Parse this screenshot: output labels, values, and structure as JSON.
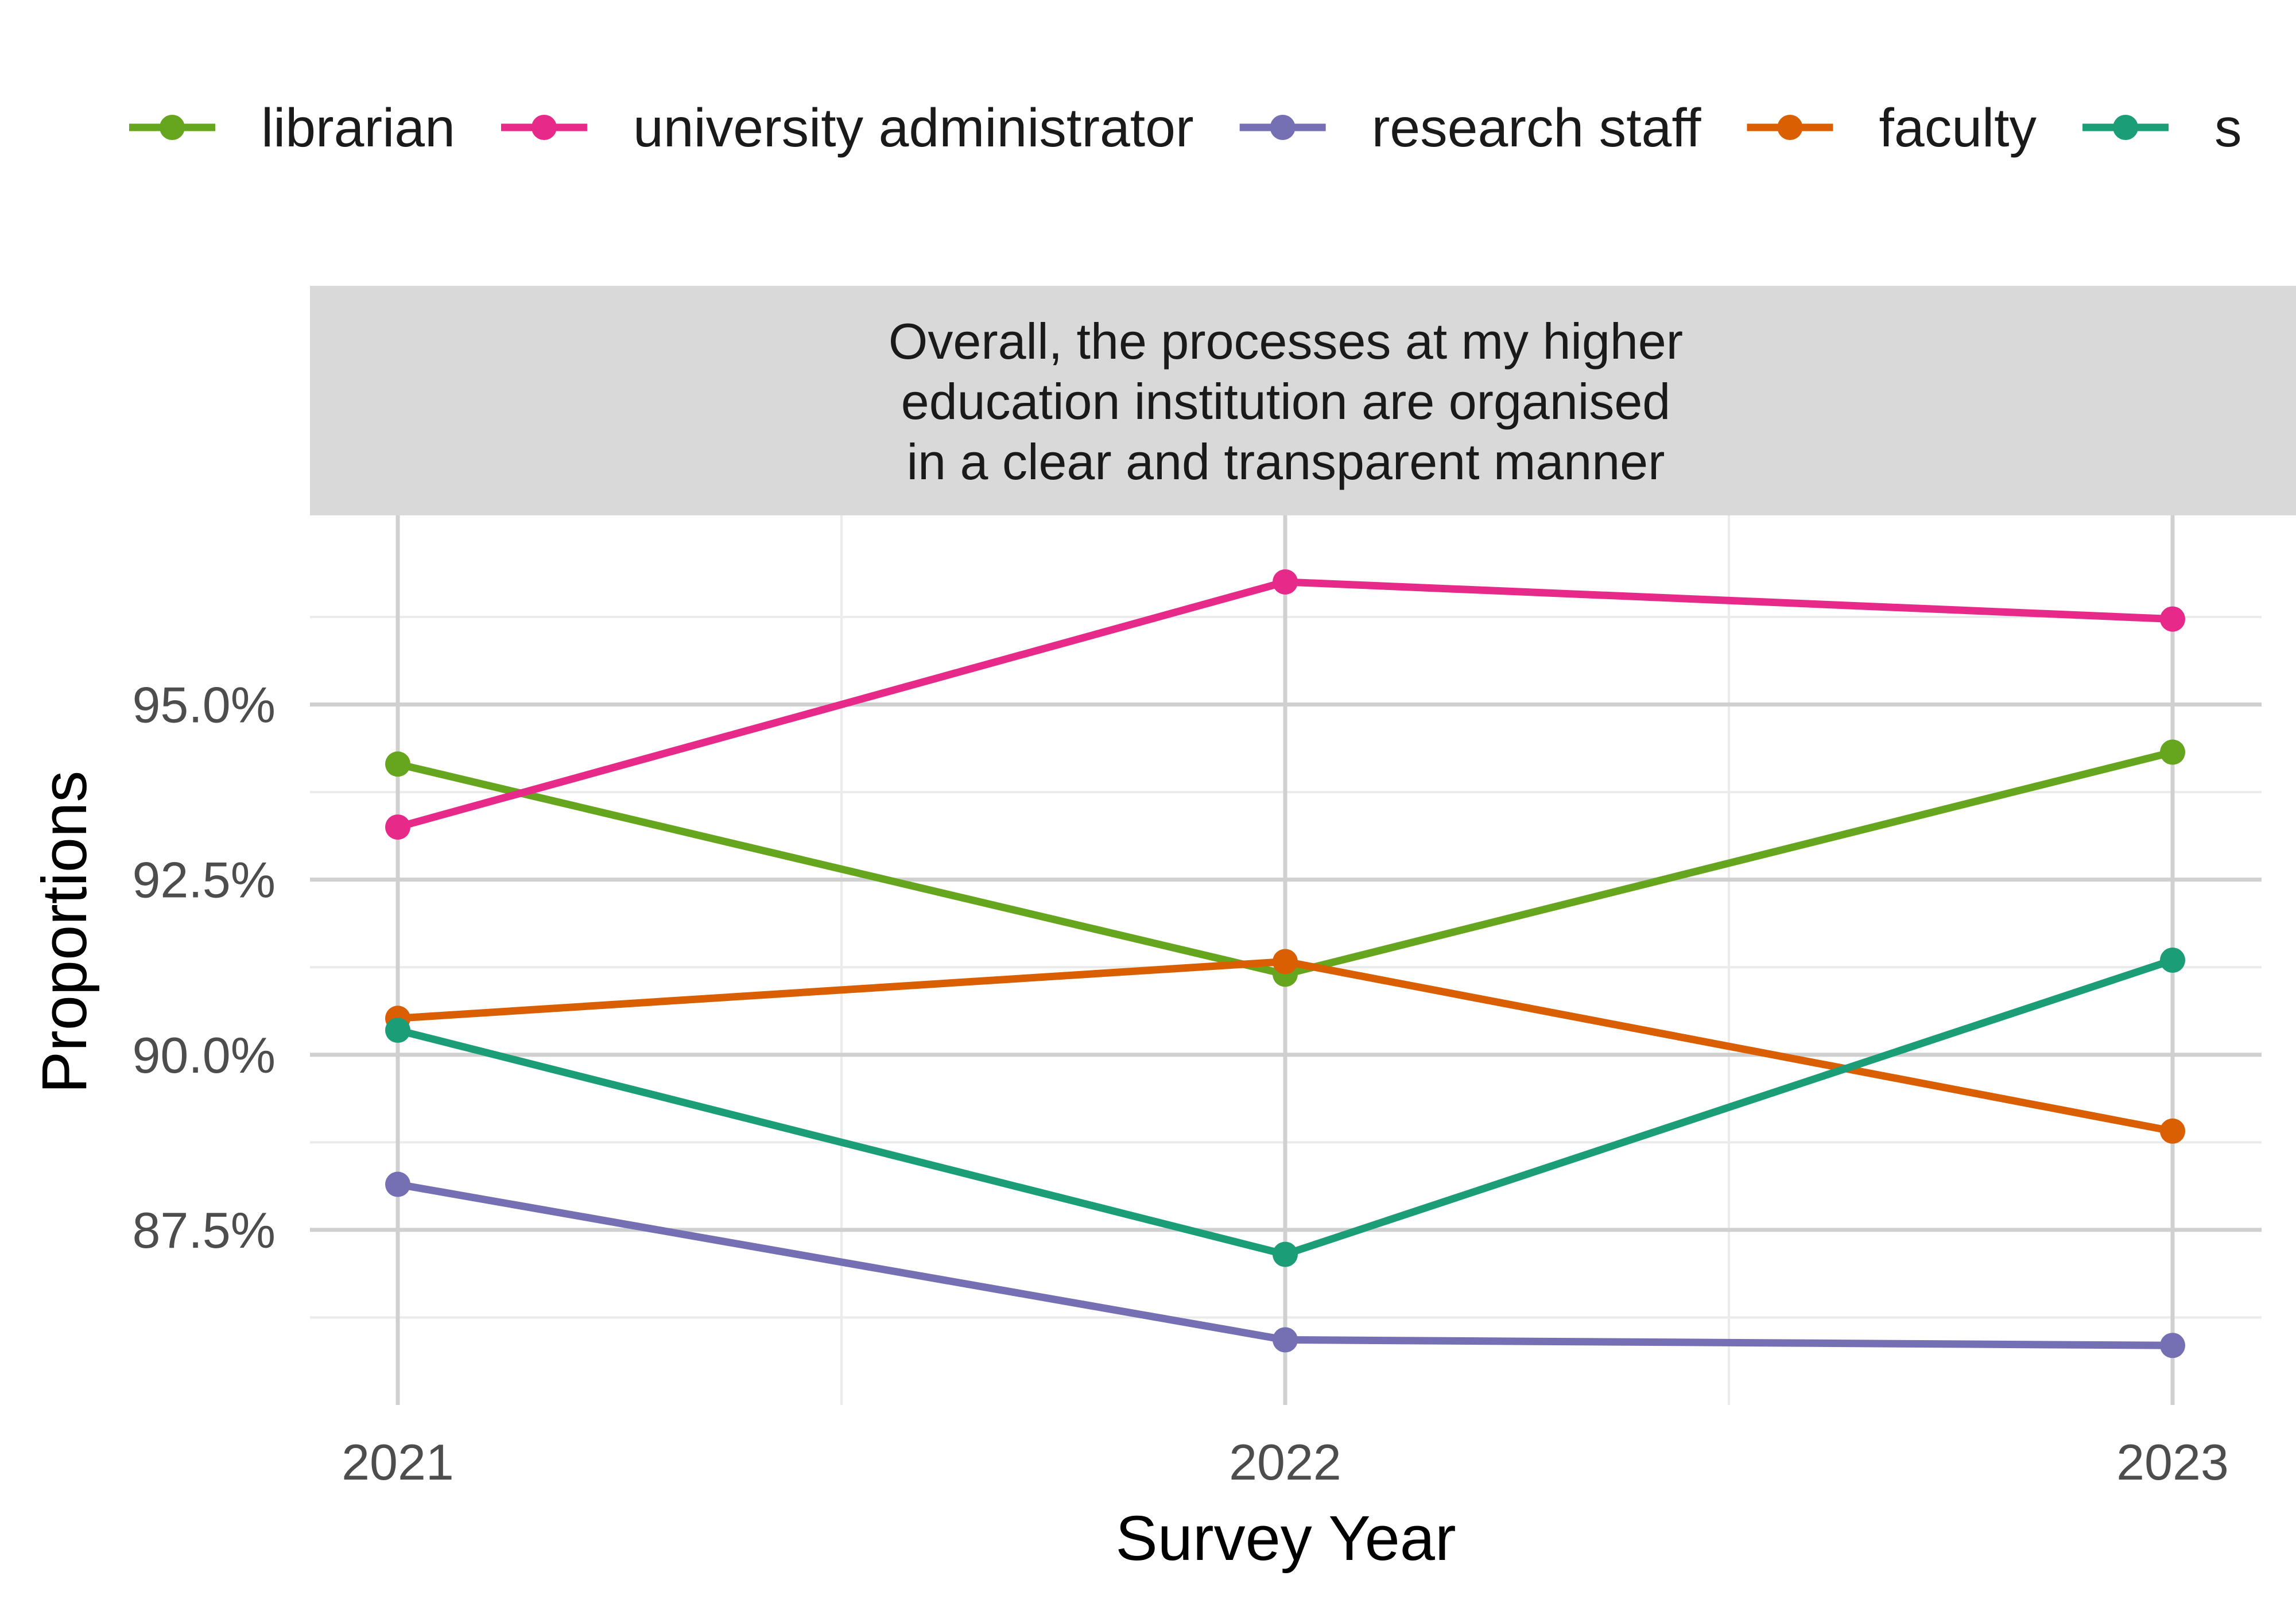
{
  "chart_data": {
    "type": "line",
    "strip_title": [
      "Overall, the processes at my higher",
      "education institution are organised",
      "in a clear and transparent manner"
    ],
    "xlabel": "Survey Year",
    "ylabel": "Proportions",
    "x": [
      2021,
      2022,
      2023
    ],
    "x_tick_labels": [
      "2021",
      "2022",
      "2023"
    ],
    "xlim": [
      2020.9,
      2023.1
    ],
    "ylim": [
      85.0,
      97.7
    ],
    "y_ticks": [
      87.5,
      90.0,
      92.5,
      95.0
    ],
    "y_tick_labels": [
      "87.5%",
      "90.0%",
      "92.5%",
      "95.0%"
    ],
    "y_minor_ticks": [
      86.25,
      88.75,
      91.25,
      93.75,
      96.25
    ],
    "grid": true,
    "legend_position": "top",
    "series": [
      {
        "name": "librarian",
        "color": "#66a61e",
        "values": [
          94.15,
          91.15,
          94.32
        ]
      },
      {
        "name": "university administrator",
        "color": "#e7298a",
        "values": [
          93.25,
          96.75,
          96.22
        ]
      },
      {
        "name": "research staff",
        "color": "#7570b3",
        "values": [
          88.15,
          85.93,
          85.85
        ]
      },
      {
        "name": "faculty",
        "color": "#d95f02",
        "values": [
          90.52,
          91.33,
          88.91
        ]
      },
      {
        "name": "s",
        "color": "#1b9e77",
        "values": [
          90.35,
          87.15,
          91.35
        ]
      }
    ]
  }
}
